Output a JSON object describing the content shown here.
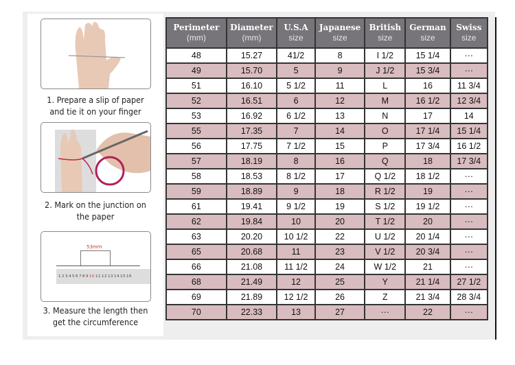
{
  "steps": [
    {
      "caption_line1": "1. Prepare a slip of paper",
      "caption_line2": "and tie it on your finger",
      "image": "hand-with-paper-strip"
    },
    {
      "caption_line1": "2. Mark on the junction on",
      "caption_line2": "the paper",
      "image": "hand-marking-with-pen"
    },
    {
      "caption_line1": "3. Measure the length then",
      "caption_line2": "get the circumference",
      "image": "ruler-measurement",
      "measure_label": "53mm",
      "ruler_numbers": [
        "1",
        "2",
        "3",
        "4",
        "5",
        "6",
        "7",
        "8",
        "9",
        "10",
        "11",
        "12",
        "13",
        "14",
        "15",
        "16"
      ]
    }
  ],
  "table": {
    "headers": [
      {
        "title": "Perimeter",
        "sub": "(mm)"
      },
      {
        "title": "Diameter",
        "sub": "(mm)"
      },
      {
        "title": "U.S.A",
        "sub": "size"
      },
      {
        "title": "Japanese",
        "sub": "size"
      },
      {
        "title": "British",
        "sub": "size"
      },
      {
        "title": "German",
        "sub": "size"
      },
      {
        "title": "Swiss",
        "sub": "size"
      }
    ],
    "rows": [
      [
        "48",
        "15.27",
        "41/2",
        "8",
        "I 1/2",
        "15 1/4",
        "···"
      ],
      [
        "49",
        "15.70",
        "5",
        "9",
        "J 1/2",
        "15 3/4",
        "···"
      ],
      [
        "51",
        "16.10",
        "5 1/2",
        "11",
        "L",
        "16",
        "11 3/4"
      ],
      [
        "52",
        "16.51",
        "6",
        "12",
        "M",
        "16 1/2",
        "12 3/4"
      ],
      [
        "53",
        "16.92",
        "6 1/2",
        "13",
        "N",
        "17",
        "14"
      ],
      [
        "55",
        "17.35",
        "7",
        "14",
        "O",
        "17 1/4",
        "15 1/4"
      ],
      [
        "56",
        "17.75",
        "7 1/2",
        "15",
        "P",
        "17 3/4",
        "16 1/2"
      ],
      [
        "57",
        "18.19",
        "8",
        "16",
        "Q",
        "18",
        "17 3/4"
      ],
      [
        "58",
        "18.53",
        "8 1/2",
        "17",
        "Q  1/2",
        "18 1/2",
        "···"
      ],
      [
        "59",
        "18.89",
        "9",
        "18",
        "R 1/2",
        "19",
        "···"
      ],
      [
        "61",
        "19.41",
        "9 1/2",
        "19",
        "S 1/2",
        "19 1/2",
        "···"
      ],
      [
        "62",
        "19.84",
        "10",
        "20",
        "T 1/2",
        "20",
        "···"
      ],
      [
        "63",
        "20.20",
        "10 1/2",
        "22",
        "U 1/2",
        "20 1/4",
        "···"
      ],
      [
        "65",
        "20.68",
        "11",
        "23",
        "V 1/2",
        "20 3/4",
        "···"
      ],
      [
        "66",
        "21.08",
        "11 1/2",
        "24",
        "W 1/2",
        "21",
        "···"
      ],
      [
        "68",
        "21.49",
        "12",
        "25",
        "Y",
        "21 1/4",
        "27 1/2"
      ],
      [
        "69",
        "21.89",
        "12 1/2",
        "26",
        "Z",
        "21 3/4",
        "28 3/4"
      ],
      [
        "70",
        "22.33",
        "13",
        "27",
        "···",
        "22",
        "···"
      ]
    ],
    "colors": {
      "header": "#77747a",
      "stripe": "#d9bcbf"
    }
  }
}
